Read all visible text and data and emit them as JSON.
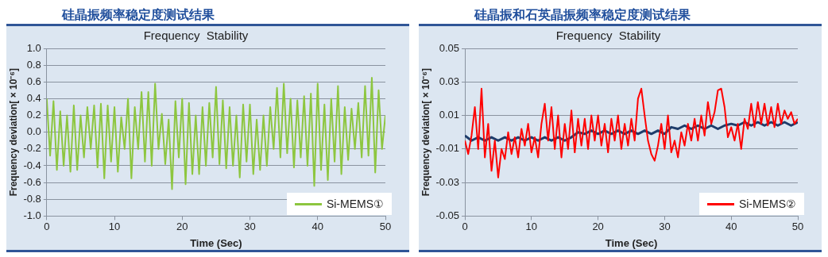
{
  "chart_data": [
    {
      "type": "line",
      "title": "硅晶振频率稳定度测试结果",
      "subtitle": "Frequency  Stability",
      "xlabel": "Time (Sec)",
      "ylabel": "Frequency deviation[ × 10⁻⁶]",
      "xlim": [
        0,
        50
      ],
      "xticks": [
        0,
        10,
        20,
        30,
        40,
        50
      ],
      "ylim": [
        -1.0,
        1.0
      ],
      "yticks": [
        {
          "value": -1,
          "label": "-1.0"
        },
        {
          "value": -0.8,
          "label": "-0.8"
        },
        {
          "value": -0.6,
          "label": "-0.6"
        },
        {
          "value": -0.4,
          "label": "-0.4"
        },
        {
          "value": -0.2,
          "label": "-0.2"
        },
        {
          "value": 0,
          "label": "0.0"
        },
        {
          "value": 0.2,
          "label": "0.2"
        },
        {
          "value": 0.4,
          "label": "0.4"
        },
        {
          "value": 0.6,
          "label": "0.6"
        },
        {
          "value": 0.8,
          "label": "0.8"
        },
        {
          "value": 1,
          "label": "1.0"
        }
      ],
      "grid": "y",
      "legend": "bottom right",
      "marker": "none",
      "series": [
        {
          "name": "Si-MEMS①",
          "color": "#8dc63f",
          "x": [
            0,
            0.5,
            1,
            1.5,
            2,
            2.5,
            3,
            3.5,
            4,
            4.5,
            5,
            5.5,
            6,
            6.5,
            7,
            7.5,
            8,
            8.5,
            9,
            9.5,
            10,
            10.5,
            11,
            11.5,
            12,
            12.5,
            13,
            13.5,
            14,
            14.5,
            15,
            15.5,
            16,
            16.5,
            17,
            17.5,
            18,
            18.5,
            19,
            19.5,
            20,
            20.5,
            21,
            21.5,
            22,
            22.5,
            23,
            23.5,
            24,
            24.5,
            25,
            25.5,
            26,
            26.5,
            27,
            27.5,
            28,
            28.5,
            29,
            29.5,
            30,
            30.5,
            31,
            31.5,
            32,
            32.5,
            33,
            33.5,
            34,
            34.5,
            35,
            35.5,
            36,
            36.5,
            37,
            37.5,
            38,
            38.5,
            39,
            39.5,
            40,
            40.5,
            41,
            41.5,
            42,
            42.5,
            43,
            43.5,
            44,
            44.5,
            45,
            45.5,
            46,
            46.5,
            47,
            47.5,
            48,
            48.5,
            49,
            49.5,
            50
          ],
          "values": [
            0.4,
            -0.28,
            0.37,
            -0.45,
            0.25,
            -0.4,
            0.2,
            -0.47,
            0.32,
            -0.45,
            0.2,
            -0.3,
            0.3,
            -0.2,
            0.32,
            -0.42,
            0.34,
            -0.55,
            0.32,
            -0.35,
            0.3,
            -0.47,
            0.18,
            -0.2,
            0.4,
            -0.55,
            0.3,
            -0.2,
            0.48,
            -0.35,
            0.48,
            -0.4,
            0.58,
            -0.2,
            0.22,
            -0.38,
            0.15,
            -0.68,
            0.37,
            -0.3,
            0.4,
            -0.62,
            0.35,
            -0.5,
            0.2,
            -0.5,
            0.3,
            -0.4,
            0.35,
            -0.3,
            0.54,
            -0.38,
            0.38,
            -0.43,
            0.3,
            -0.4,
            0.2,
            -0.54,
            0.33,
            -0.35,
            0.33,
            -0.5,
            0.15,
            -0.45,
            0.2,
            -0.4,
            0.3,
            -0.2,
            0.53,
            -0.3,
            0.58,
            -0.25,
            0.4,
            -0.42,
            0.38,
            -0.3,
            0.43,
            -0.4,
            0.46,
            -0.64,
            0.58,
            -0.45,
            0.33,
            -0.57,
            0.4,
            -0.35,
            0.55,
            -0.5,
            0.3,
            -0.33,
            0.28,
            -0.2,
            0.35,
            -0.3,
            0.55,
            -0.28,
            0.65,
            -0.48,
            0.5,
            -0.2,
            0.2
          ]
        }
      ]
    },
    {
      "type": "line",
      "title": "硅晶振和石英晶振频率稳定度测试结果",
      "subtitle": "Frequency  Stability",
      "xlabel": "Time (Sec)",
      "ylabel": "Frequency deviation[ × 10⁻⁶]",
      "xlim": [
        0,
        50
      ],
      "xticks": [
        0,
        10,
        20,
        30,
        40,
        50
      ],
      "ylim": [
        -0.05,
        0.05
      ],
      "yticks": [
        -0.05,
        -0.03,
        -0.01,
        0.01,
        0.03,
        0.05
      ],
      "grid": "y",
      "legend": "bottom right",
      "marker": "none",
      "series": [
        {
          "name": "Si-MEMS②",
          "color": "#ff0000",
          "x": [
            0,
            0.5,
            1,
            1.5,
            2,
            2.5,
            3,
            3.5,
            4,
            4.5,
            5,
            5.5,
            6,
            6.5,
            7,
            7.5,
            8,
            8.5,
            9,
            9.5,
            10,
            10.5,
            11,
            11.5,
            12,
            12.5,
            13,
            13.5,
            14,
            14.5,
            15,
            15.5,
            16,
            16.5,
            17,
            17.5,
            18,
            18.5,
            19,
            19.5,
            20,
            20.5,
            21,
            21.5,
            22,
            22.5,
            23,
            23.5,
            24,
            24.5,
            25,
            25.5,
            26,
            26.5,
            27,
            27.5,
            28,
            28.5,
            29,
            29.5,
            30,
            30.5,
            31,
            31.5,
            32,
            32.5,
            33,
            33.5,
            34,
            34.5,
            35,
            35.5,
            36,
            36.5,
            37,
            37.5,
            38,
            38.5,
            39,
            39.5,
            40,
            40.5,
            41,
            41.5,
            42,
            42.5,
            43,
            43.5,
            44,
            44.5,
            45,
            45.5,
            46,
            46.5,
            47,
            47.5,
            48,
            48.5,
            49,
            49.5,
            50
          ],
          "values": [
            -0.005,
            -0.013,
            -0.002,
            0.015,
            -0.01,
            0.026,
            -0.015,
            0.005,
            -0.023,
            -0.005,
            -0.027,
            -0.01,
            -0.016,
            0,
            -0.013,
            -0.003,
            -0.015,
            0.002,
            -0.008,
            0.005,
            -0.012,
            -0.003,
            -0.015,
            0.005,
            0.017,
            -0.005,
            0.015,
            -0.01,
            0.01,
            -0.015,
            0.005,
            -0.01,
            0.013,
            -0.012,
            0.008,
            -0.008,
            0.008,
            -0.01,
            0.01,
            -0.005,
            0.01,
            -0.008,
            0.005,
            -0.012,
            0.008,
            -0.005,
            0.01,
            -0.01,
            0.005,
            -0.008,
            0.008,
            -0.005,
            0.02,
            0.026,
            0.01,
            -0.005,
            -0.013,
            -0.017,
            -0.008,
            0.005,
            -0.01,
            0.01,
            -0.012,
            -0.005,
            -0.015,
            0,
            -0.008,
            0.005,
            -0.005,
            0.008,
            -0.005,
            0.01,
            -0.002,
            0.018,
            0.005,
            0.012,
            0.025,
            0.026,
            0.015,
            -0.003,
            0.003,
            -0.005,
            0.005,
            -0.01,
            0.008,
            0.002,
            0.017,
            0.003,
            0.018,
            0.005,
            0.017,
            0.004,
            0.015,
            0.003,
            0.017,
            0.005,
            0.013,
            0.008,
            0.012,
            0.005,
            0.008
          ]
        },
        {
          "color": "#1f3d6b",
          "x": [
            0,
            1,
            2,
            3,
            4,
            5,
            6,
            7,
            8,
            9,
            10,
            11,
            12,
            13,
            14,
            15,
            16,
            17,
            18,
            19,
            20,
            21,
            22,
            23,
            24,
            25,
            26,
            27,
            28,
            29,
            30,
            31,
            32,
            33,
            34,
            35,
            36,
            37,
            38,
            39,
            40,
            41,
            42,
            43,
            44,
            45,
            46,
            47,
            48,
            49,
            50
          ],
          "values": [
            -0.002,
            -0.005,
            -0.003,
            -0.005,
            -0.003,
            -0.005,
            -0.003,
            -0.005,
            -0.003,
            -0.005,
            -0.003,
            -0.005,
            -0.003,
            -0.005,
            -0.003,
            -0.005,
            -0.003,
            0,
            -0.001,
            0.001,
            -0.001,
            0.001,
            -0.001,
            0.001,
            -0.001,
            0.001,
            -0.001,
            0.001,
            -0.001,
            0.001,
            -0.001,
            0.003,
            0.002,
            0.004,
            0.002,
            0.004,
            0.002,
            0.004,
            0.002,
            0.004,
            0.005,
            0.004,
            0.006,
            0.004,
            0.006,
            0.004,
            0.006,
            0.004,
            0.006,
            0.004,
            0.006
          ]
        }
      ]
    }
  ]
}
